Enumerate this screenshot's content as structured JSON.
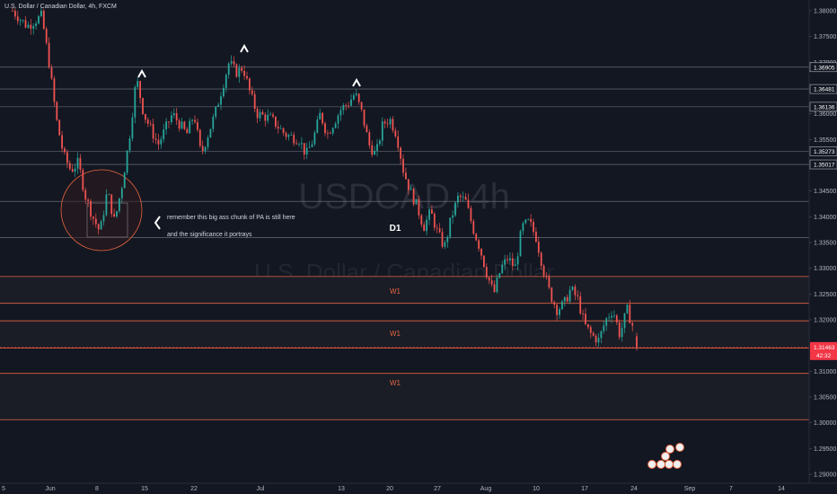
{
  "header": {
    "title": "U.S. Dollar / Canadian Dollar, 4h, FXCM"
  },
  "watermark": {
    "symbol": "USDCAD, 4h",
    "name": "U.S. Dollar / Canadian Dollar"
  },
  "price_axis": {
    "ticks": [
      "1.38000",
      "1.37500",
      "1.37000",
      "1.36500",
      "1.36000",
      "1.35500",
      "1.35000",
      "1.34500",
      "1.34000",
      "1.33500",
      "1.33000",
      "1.32500",
      "1.32000",
      "1.31500",
      "1.31000",
      "1.30500",
      "1.30000",
      "1.29500",
      "1.29000"
    ],
    "level_tags": [
      "1.36905",
      "1.36481",
      "1.36136",
      "1.35273",
      "1.35017"
    ],
    "current_price": "1.31463",
    "countdown": "42:32",
    "current_color": "#f23645"
  },
  "time_axis": {
    "labels": [
      "5",
      "Jun",
      "8",
      "15",
      "22",
      "Jul",
      "13",
      "20",
      "27",
      "Aug",
      "10",
      "17",
      "24",
      "Sep",
      "7",
      "14"
    ]
  },
  "annotations": {
    "note_line1": "remember this big ass chunk of PA is still here",
    "note_line2": "and the significance it portrays",
    "d1": "D1",
    "w1_a": "W1",
    "w1_b": "W1",
    "w1_c": "W1",
    "zone_color": "#e5643f"
  },
  "chart_data": {
    "type": "candlestick",
    "symbol": "USDCAD",
    "timeframe": "4h",
    "source": "FXCM",
    "ylim": [
      1.2875,
      1.3815
    ],
    "x_labels": [
      "5",
      "Jun",
      "8",
      "15",
      "22",
      "Jul",
      "13",
      "20",
      "27",
      "Aug",
      "10",
      "17",
      "24",
      "Sep",
      "7",
      "14"
    ],
    "price_path": [
      [
        "May 28",
        1.38
      ],
      [
        "May 30",
        1.377
      ],
      [
        "Jun 1",
        1.379
      ],
      [
        "Jun 2",
        1.37
      ],
      [
        "Jun 3",
        1.359
      ],
      [
        "Jun 4",
        1.352
      ],
      [
        "Jun 5",
        1.349
      ],
      [
        "Jun 6",
        1.3505
      ],
      [
        "Jun 7",
        1.344
      ],
      [
        "Jun 8",
        1.34
      ],
      [
        "Jun 9",
        1.337
      ],
      [
        "Jun 10",
        1.345
      ],
      [
        "Jun 11",
        1.339
      ],
      [
        "Jun 12",
        1.346
      ],
      [
        "Jun 13",
        1.355
      ],
      [
        "Jun 14",
        1.367
      ],
      [
        "Jun 15",
        1.36
      ],
      [
        "Jun 17",
        1.354
      ],
      [
        "Jun 19",
        1.36
      ],
      [
        "Jun 21",
        1.356
      ],
      [
        "Jun 22",
        1.36
      ],
      [
        "Jun 23",
        1.352
      ],
      [
        "Jun 25",
        1.36
      ],
      [
        "Jun 26",
        1.365
      ],
      [
        "Jun 27",
        1.37
      ],
      [
        "Jun 28",
        1.368
      ],
      [
        "Jun 29",
        1.369
      ],
      [
        "Jun 30",
        1.364
      ],
      [
        "Jul 1",
        1.36
      ],
      [
        "Jul 3",
        1.359
      ],
      [
        "Jul 5",
        1.356
      ],
      [
        "Jul 7",
        1.355
      ],
      [
        "Jul 8",
        1.352
      ],
      [
        "Jul 9",
        1.355
      ],
      [
        "Jul 10",
        1.36
      ],
      [
        "Jul 11",
        1.356
      ],
      [
        "Jul 13",
        1.361
      ],
      [
        "Jul 14",
        1.362
      ],
      [
        "Jul 15",
        1.364
      ],
      [
        "Jul 16",
        1.36
      ],
      [
        "Jul 17",
        1.354
      ],
      [
        "Jul 18",
        1.352
      ],
      [
        "Jul 19",
        1.358
      ],
      [
        "Jul 20",
        1.359
      ],
      [
        "Jul 21",
        1.356
      ],
      [
        "Jul 22",
        1.349
      ],
      [
        "Jul 23",
        1.345
      ],
      [
        "Jul 24",
        1.342
      ],
      [
        "Jul 25",
        1.338
      ],
      [
        "Jul 26",
        1.341
      ],
      [
        "Jul 27",
        1.337
      ],
      [
        "Jul 28",
        1.334
      ],
      [
        "Jul 29",
        1.34
      ],
      [
        "Jul 30",
        1.344
      ],
      [
        "Jul 31",
        1.343
      ],
      [
        "Aug 1",
        1.338
      ],
      [
        "Aug 2",
        1.334
      ],
      [
        "Aug 3",
        1.329
      ],
      [
        "Aug 4",
        1.325
      ],
      [
        "Aug 5",
        1.33
      ],
      [
        "Aug 6",
        1.332
      ],
      [
        "Aug 7",
        1.33
      ],
      [
        "Aug 8",
        1.338
      ],
      [
        "Aug 9",
        1.339
      ],
      [
        "Aug 10",
        1.336
      ],
      [
        "Aug 11",
        1.33
      ],
      [
        "Aug 12",
        1.325
      ],
      [
        "Aug 13",
        1.322
      ],
      [
        "Aug 14",
        1.323
      ],
      [
        "Aug 15",
        1.326
      ],
      [
        "Aug 16",
        1.324
      ],
      [
        "Aug 17",
        1.319
      ],
      [
        "Aug 18",
        1.317
      ],
      [
        "Aug 19",
        1.316
      ],
      [
        "Aug 20",
        1.32
      ],
      [
        "Aug 21",
        1.322
      ],
      [
        "Aug 22",
        1.317
      ],
      [
        "Aug 23",
        1.322
      ],
      [
        "Aug 24",
        1.318
      ],
      [
        "Aug 25",
        1.3146
      ]
    ],
    "horizontal_levels": [
      1.36905,
      1.36481,
      1.36136,
      1.35273,
      1.35017,
      1.343,
      1.336
    ],
    "zones": [
      {
        "label": "W1",
        "from": 1.3232,
        "to": 1.3284
      },
      {
        "label": "W1",
        "from": 1.3145,
        "to": 1.3198
      },
      {
        "label": "W1",
        "from": 1.3006,
        "to": 1.3096
      }
    ],
    "last_price": 1.31463
  }
}
